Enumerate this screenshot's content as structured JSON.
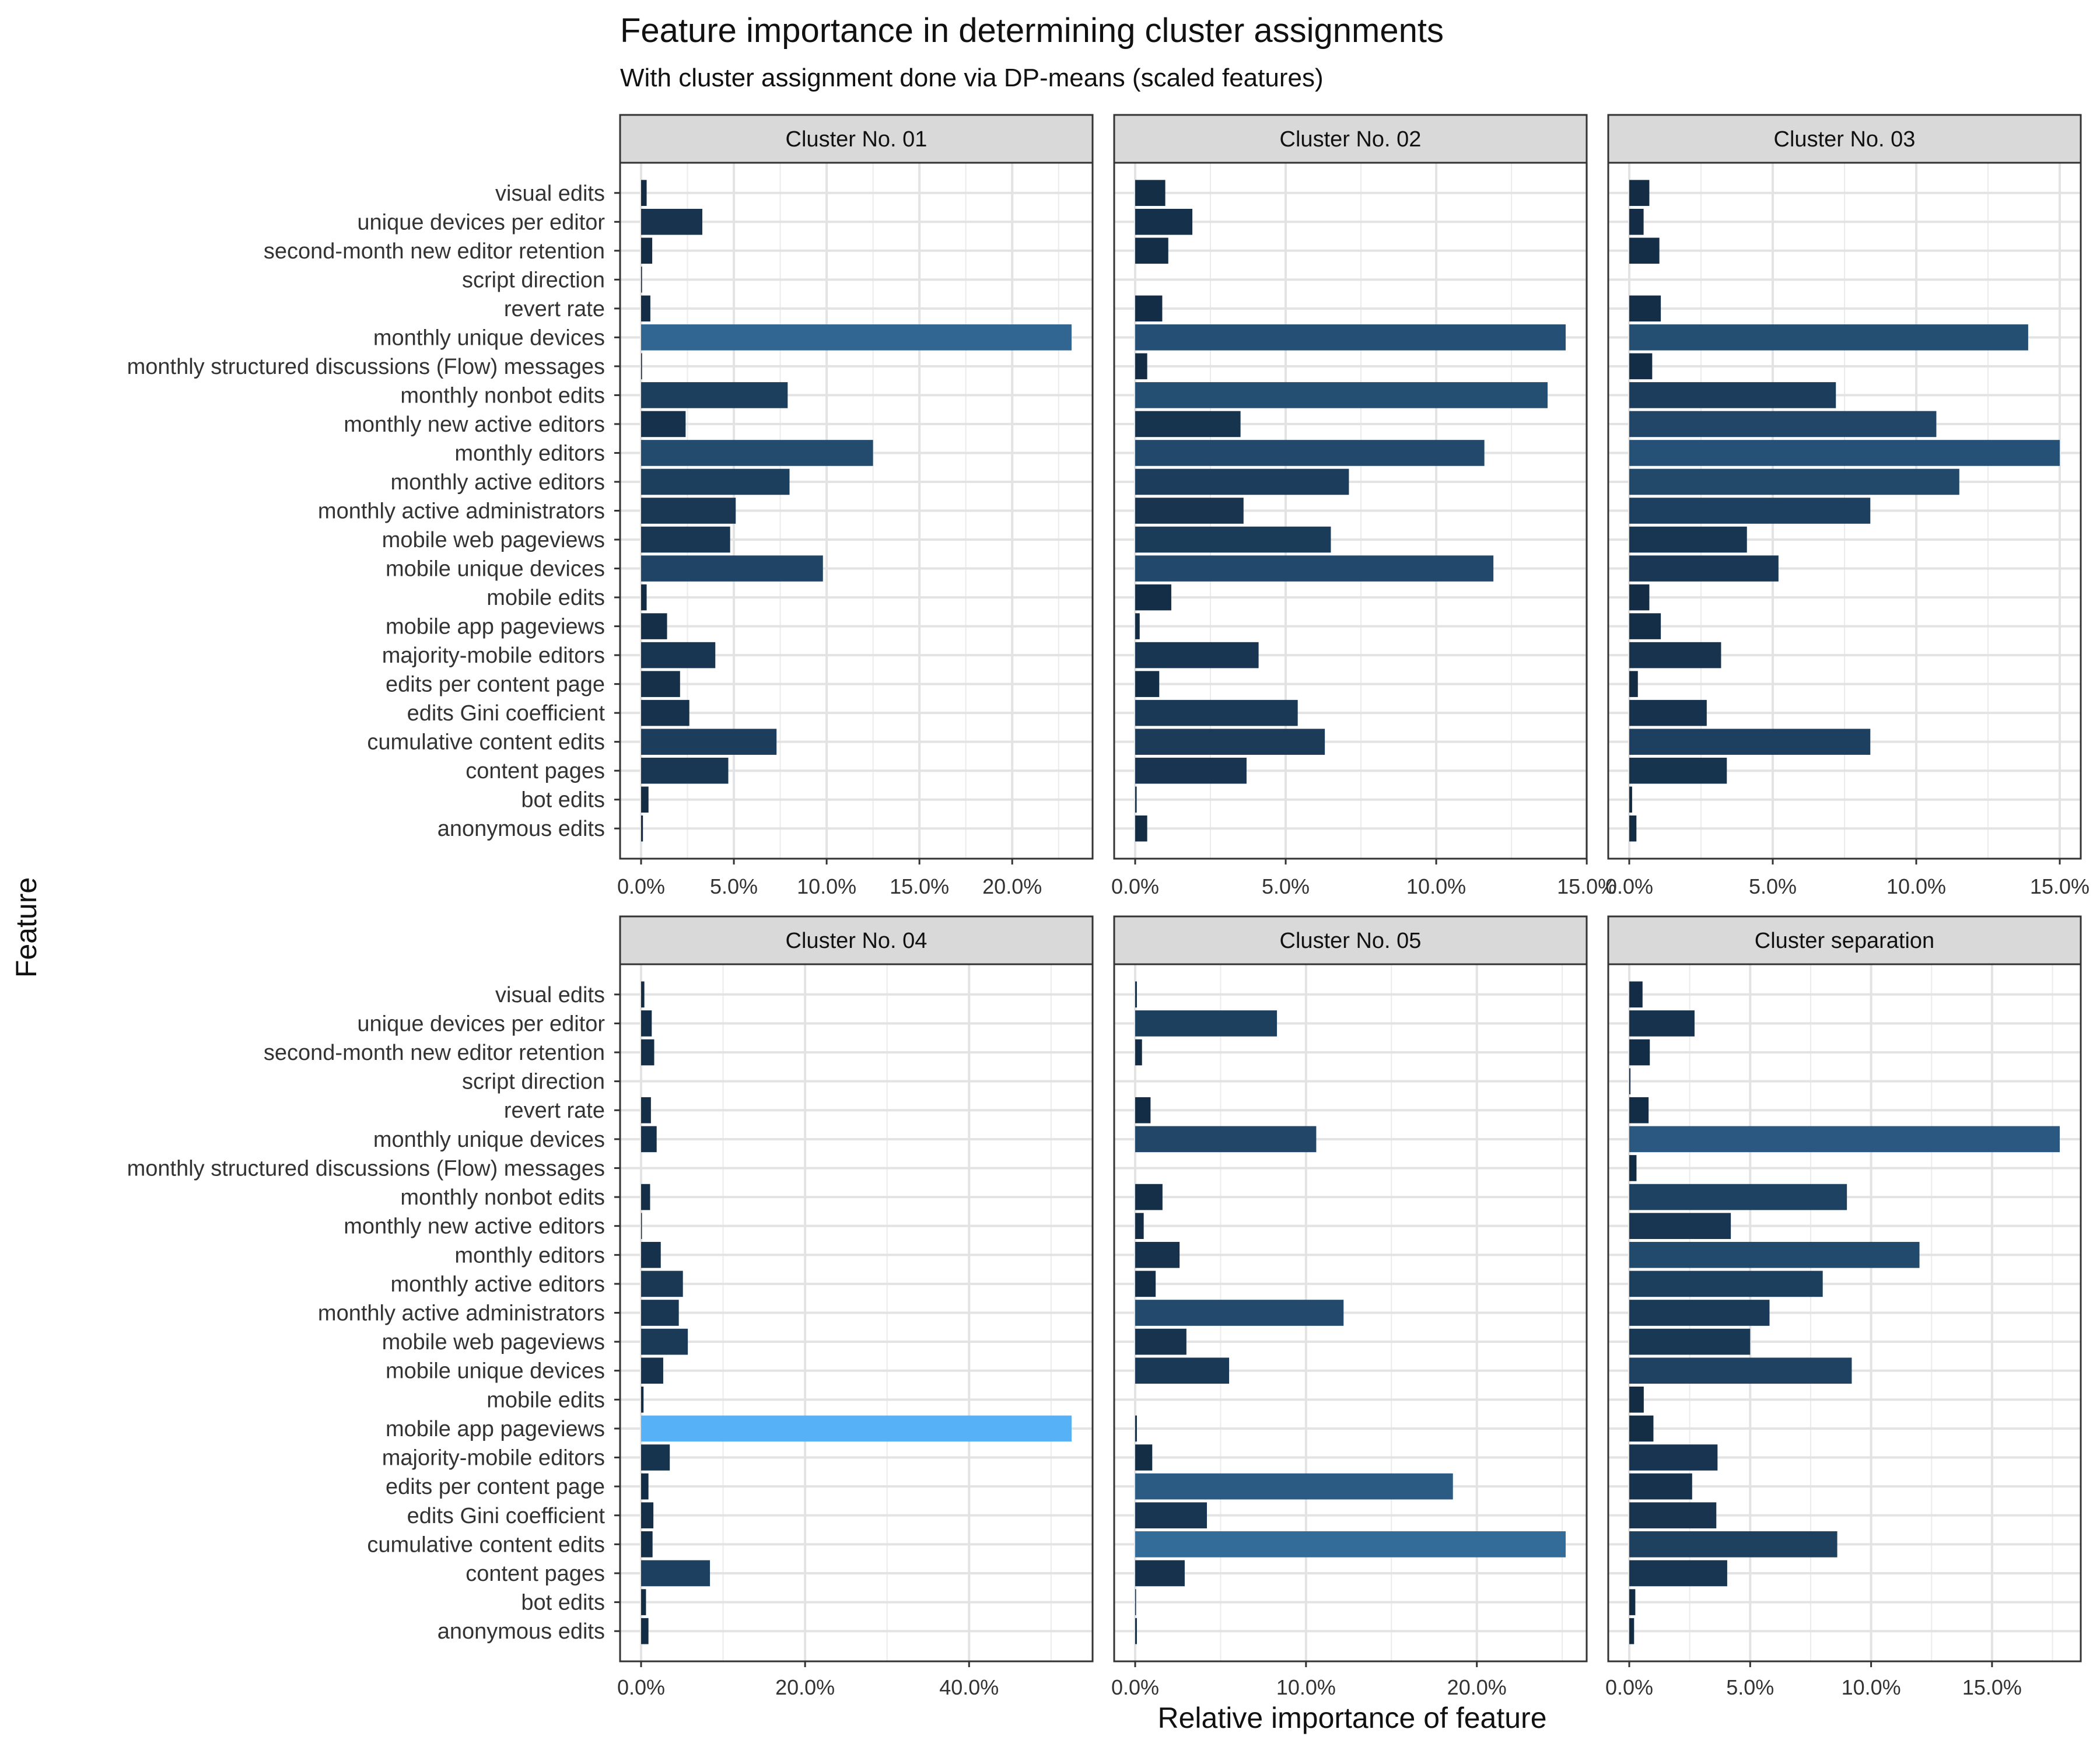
{
  "chart_data": {
    "type": "bar",
    "orientation": "horizontal",
    "title": "Feature importance in determining cluster assignments",
    "subtitle": "With cluster assignment done via DP-means (scaled features)",
    "xlabel": "Relative importance of feature",
    "ylabel": "Feature",
    "grid": true,
    "color_scale": {
      "low": "#132B43",
      "high": "#56B1F7"
    },
    "categories": [
      "visual edits",
      "unique devices per editor",
      "second-month new editor retention",
      "script direction",
      "revert rate",
      "monthly unique devices",
      "monthly structured discussions (Flow) messages",
      "monthly nonbot edits",
      "monthly new active editors",
      "monthly editors",
      "monthly active editors",
      "monthly active administrators",
      "mobile web pageviews",
      "mobile unique devices",
      "mobile edits",
      "mobile app pageviews",
      "majority-mobile editors",
      "edits per content page",
      "edits Gini coefficient",
      "cumulative content edits",
      "content pages",
      "bot edits",
      "anonymous edits"
    ],
    "panels": [
      {
        "strip": "Cluster No. 01",
        "xlim": [
          0,
          23.2
        ],
        "ticks": [
          0,
          5,
          10,
          15,
          20
        ],
        "tick_labels": [
          "0.0%",
          "5.0%",
          "10.0%",
          "15.0%",
          "20.0%"
        ],
        "values": [
          0.3,
          3.3,
          0.6,
          0.05,
          0.5,
          23.2,
          0.05,
          7.9,
          2.4,
          12.5,
          8.0,
          5.1,
          4.8,
          9.8,
          0.3,
          1.4,
          4.0,
          2.1,
          2.6,
          7.3,
          4.7,
          0.4,
          0.1
        ]
      },
      {
        "strip": "Cluster No. 02",
        "xlim": [
          0,
          14.3
        ],
        "ticks": [
          0,
          5,
          10,
          15
        ],
        "tick_labels": [
          "0.0%",
          "5.0%",
          "10.0%",
          "15.0%"
        ],
        "values": [
          1.0,
          1.9,
          1.1,
          0.0,
          0.9,
          14.3,
          0.4,
          13.7,
          3.5,
          11.6,
          7.1,
          3.6,
          6.5,
          11.9,
          1.2,
          0.15,
          4.1,
          0.8,
          5.4,
          6.3,
          3.7,
          0.05,
          0.4
        ]
      },
      {
        "strip": "Cluster No. 03",
        "xlim": [
          0,
          15.0
        ],
        "ticks": [
          0,
          5,
          10,
          15
        ],
        "tick_labels": [
          "0.0%",
          "5.0%",
          "10.0%",
          "15.0%"
        ],
        "values": [
          0.7,
          0.5,
          1.05,
          0.0,
          1.1,
          13.9,
          0.8,
          7.2,
          10.7,
          15.0,
          11.5,
          8.4,
          4.1,
          5.2,
          0.7,
          1.1,
          3.2,
          0.3,
          2.7,
          8.4,
          3.4,
          0.1,
          0.25
        ]
      },
      {
        "strip": "Cluster No. 04",
        "xlim": [
          0,
          52.5
        ],
        "ticks": [
          0,
          20,
          40
        ],
        "tick_labels": [
          "0.0%",
          "20.0%",
          "40.0%"
        ],
        "values": [
          0.4,
          1.3,
          1.6,
          0.0,
          1.2,
          1.9,
          0.0,
          1.1,
          0.1,
          2.4,
          5.1,
          4.6,
          5.7,
          2.7,
          0.3,
          52.5,
          3.5,
          0.9,
          1.5,
          1.4,
          8.4,
          0.6,
          0.9
        ]
      },
      {
        "strip": "Cluster No. 05",
        "xlim": [
          0,
          25.2
        ],
        "ticks": [
          0,
          10,
          20
        ],
        "tick_labels": [
          "0.0%",
          "10.0%",
          "20.0%"
        ],
        "values": [
          0.1,
          8.3,
          0.4,
          0.0,
          0.9,
          10.6,
          0.0,
          1.6,
          0.5,
          2.6,
          1.2,
          12.2,
          3.0,
          5.5,
          0.0,
          0.1,
          1.0,
          18.6,
          4.2,
          25.2,
          2.9,
          0.05,
          0.1
        ]
      },
      {
        "strip": "Cluster separation",
        "xlim": [
          0,
          17.8
        ],
        "ticks": [
          0,
          5,
          10,
          15
        ],
        "tick_labels": [
          "0.0%",
          "5.0%",
          "10.0%",
          "15.0%"
        ],
        "values": [
          0.55,
          2.7,
          0.85,
          0.05,
          0.8,
          17.8,
          0.3,
          9.0,
          4.2,
          12.0,
          8.0,
          5.8,
          5.0,
          9.2,
          0.6,
          1.0,
          3.65,
          2.6,
          3.6,
          8.6,
          4.05,
          0.25,
          0.2
        ]
      }
    ]
  }
}
